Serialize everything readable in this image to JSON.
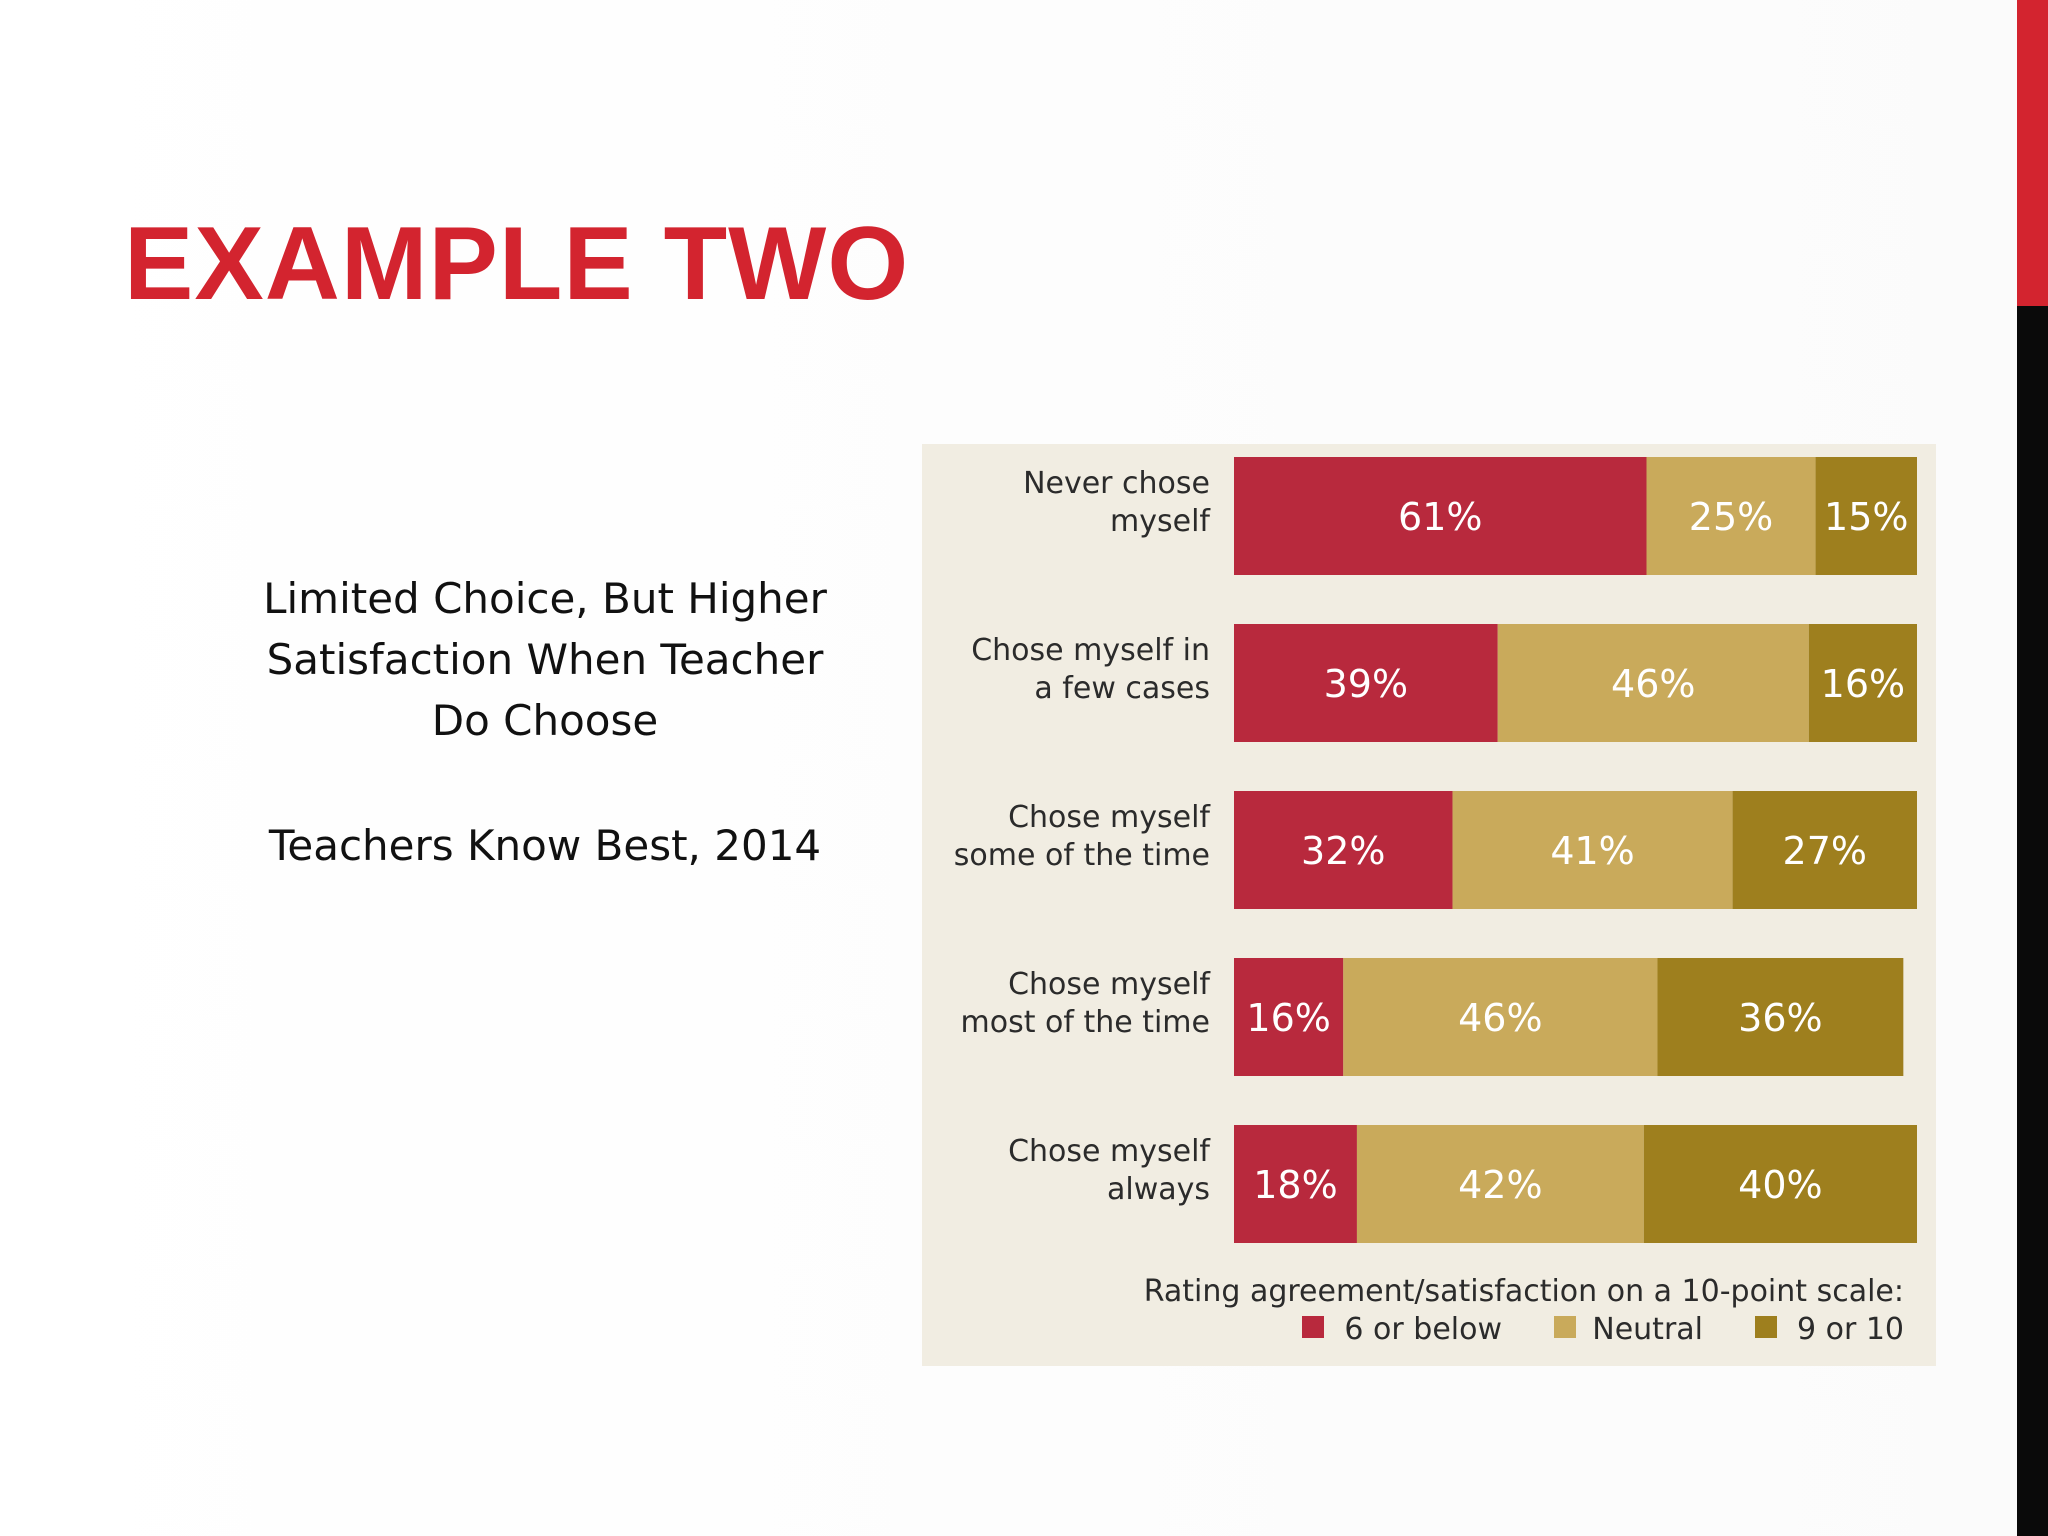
{
  "slide": {
    "title": "EXAMPLE TWO",
    "caption_line1": "Limited Choice, But Higher",
    "caption_line2": "Satisfaction When Teacher",
    "caption_line3": "Do Choose",
    "citation": "Teachers Know Best, 2014"
  },
  "colors": {
    "accent_red": "#d3242f",
    "chart_bg": "#f1ede2",
    "low": "#b8293d",
    "neutral": "#c9aa5b",
    "high": "#9e7f1e"
  },
  "chart_data": {
    "type": "bar",
    "orientation": "horizontal",
    "stacked": true,
    "categories": [
      [
        "Never chose",
        "myself"
      ],
      [
        "Chose myself in",
        "a few cases"
      ],
      [
        "Chose myself",
        "some of the time"
      ],
      [
        "Chose myself",
        "most of the time"
      ],
      [
        "Chose myself",
        "always"
      ]
    ],
    "series": [
      {
        "name": "6 or below",
        "values": [
          61,
          39,
          32,
          16,
          18
        ],
        "labels": [
          "61%",
          "39%",
          "32%",
          "16%",
          "18%"
        ],
        "color": "#b8293d"
      },
      {
        "name": "Neutral",
        "values": [
          25,
          46,
          41,
          46,
          42
        ],
        "labels": [
          "25%",
          "46%",
          "41%",
          "46%",
          "42%"
        ],
        "color": "#c9aa5b"
      },
      {
        "name": "9 or 10",
        "values": [
          15,
          16,
          27,
          36,
          40
        ],
        "labels": [
          "15%",
          "16%",
          "27%",
          "36%",
          "40%"
        ],
        "color": "#9e7f1e"
      }
    ],
    "legend_title": "Rating agreement/satisfaction on a 10-point scale:",
    "legend_position": "bottom-right"
  }
}
